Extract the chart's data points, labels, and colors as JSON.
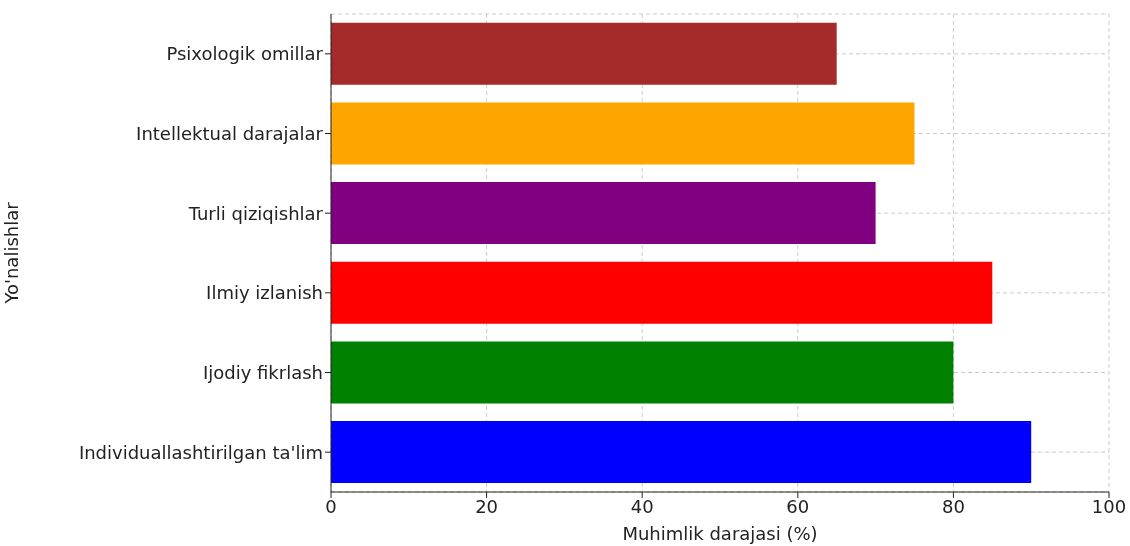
{
  "chart_data": {
    "type": "bar",
    "orientation": "horizontal",
    "xlabel": "Muhimlik darajasi (%)",
    "ylabel": "Yo'nalishlar",
    "categories": [
      "Psixologik omillar",
      "Intellektual darajalar",
      "Turli qiziqishlar",
      "Ilmiy izlanish",
      "Ijodiy fikrlash",
      "Individuallashtirilgan ta'lim"
    ],
    "values": [
      65,
      75,
      70,
      85,
      80,
      90
    ],
    "colors": [
      "#a52a2a",
      "#ffa500",
      "#800080",
      "#ff0000",
      "#008000",
      "#0000ff"
    ],
    "xlim": [
      0,
      100
    ],
    "xticks": [
      0,
      20,
      40,
      60,
      80,
      100
    ],
    "grid": true
  }
}
